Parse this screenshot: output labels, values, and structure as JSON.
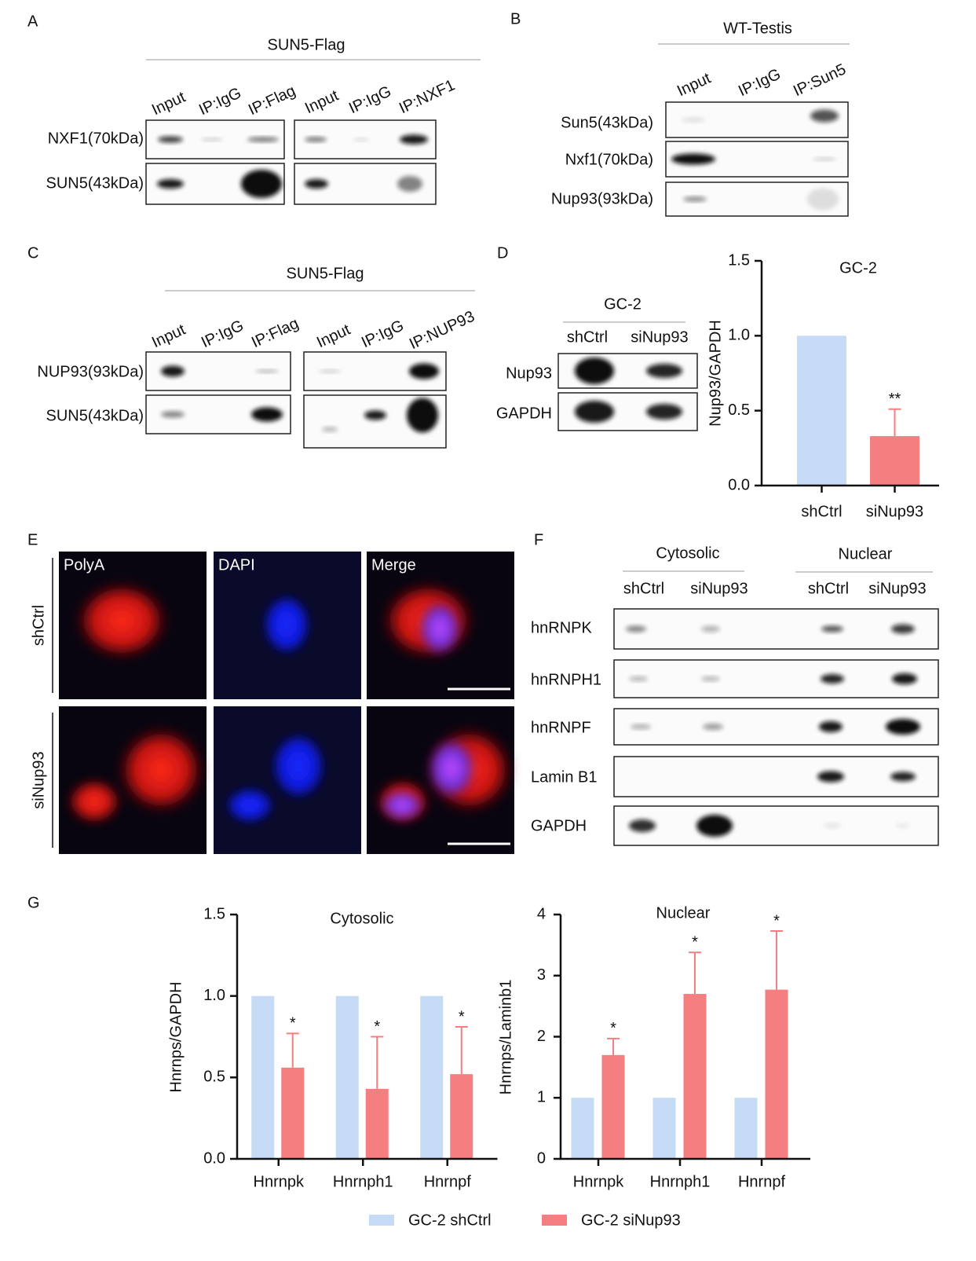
{
  "panel_letters": [
    "A",
    "B",
    "C",
    "D",
    "E",
    "F",
    "G"
  ],
  "panelA": {
    "title": "SUN5-Flag",
    "lanes": [
      "Input",
      "IP:IgG",
      "IP:Flag",
      "Input",
      "IP:IgG",
      "IP:NXF1"
    ],
    "rows": [
      "NXF1(70kDa)",
      "SUN5(43kDa)"
    ]
  },
  "panelB": {
    "title": "WT-Testis",
    "lanes": [
      "Input",
      "IP:IgG",
      "IP:Sun5"
    ],
    "rows": [
      "Sun5(43kDa)",
      "Nxf1(70kDa)",
      "Nup93(93kDa)"
    ]
  },
  "panelC": {
    "title": "SUN5-Flag",
    "lanes": [
      "Input",
      "IP:IgG",
      "IP:Flag",
      "Input",
      "IP:IgG",
      "IP:NUP93"
    ],
    "rows": [
      "NUP93(93kDa)",
      "SUN5(43kDa)"
    ]
  },
  "panelD": {
    "title": "GC-2",
    "lanes": [
      "shCtrl",
      "siNup93"
    ],
    "rows": [
      "Nup93",
      "GAPDH"
    ]
  },
  "panelE": {
    "columns": [
      "PolyA",
      "DAPI",
      "Merge"
    ],
    "rows": [
      "shCtrl",
      "siNup93"
    ]
  },
  "panelF": {
    "groups": [
      "Cytosolic",
      "Nuclear"
    ],
    "lanes": [
      "shCtrl",
      "siNup93",
      "shCtrl",
      "siNup93"
    ],
    "rows": [
      "hnRNPK",
      "hnRNPH1",
      "hnRNPF",
      "Lamin B1",
      "GAPDH"
    ]
  },
  "chart_data": [
    {
      "type": "bar",
      "title": "GC-2",
      "y_label": "Nup93/GAPDH",
      "categories": [
        "shCtrl",
        "siNup93"
      ],
      "values": [
        1.0,
        0.33
      ],
      "errors": [
        null,
        0.18
      ],
      "colors": [
        "#c6dbf5",
        "#f47e80"
      ],
      "value_annotations": [
        null,
        "**"
      ],
      "ylim": [
        0,
        1.5
      ],
      "yticks": [
        {
          "value": 0,
          "label": "0.0"
        },
        {
          "value": 0.5,
          "label": "0.5"
        },
        {
          "value": 1,
          "label": "1.0"
        },
        {
          "value": 1.5,
          "label": "1.5"
        }
      ]
    },
    {
      "type": "grouped_bar",
      "title": "Cytosolic",
      "y_label": "Hnrnps/GAPDH",
      "categories": [
        "Hnrnpk",
        "Hnrnph1",
        "Hnrnpf"
      ],
      "series": [
        {
          "name": "GC-2 shCtrl",
          "color": "#c6dbf5",
          "values": [
            1,
            1,
            1
          ]
        },
        {
          "name": "GC-2 siNup93",
          "color": "#f47e80",
          "values": [
            0.56,
            0.43,
            0.52
          ],
          "errors": [
            0.21,
            0.32,
            0.29
          ],
          "annotations": [
            "*",
            "*",
            "*"
          ]
        }
      ],
      "ylim": [
        0,
        1.5
      ],
      "yticks": [
        {
          "value": 0,
          "label": "0.0"
        },
        {
          "value": 0.5,
          "label": "0.5"
        },
        {
          "value": 1,
          "label": "1.0"
        },
        {
          "value": 1.5,
          "label": "1.5"
        }
      ]
    },
    {
      "type": "grouped_bar",
      "title": "Nuclear",
      "y_label": "Hnrnps/Laminb1",
      "categories": [
        "Hnrnpk",
        "Hnrnph1",
        "Hnrnpf"
      ],
      "series": [
        {
          "color": "#c6dbf5",
          "values": [
            1,
            1,
            1
          ]
        },
        {
          "color": "#f47e80",
          "values": [
            1.7,
            2.7,
            2.77
          ],
          "errors": [
            0.27,
            0.68,
            0.96
          ],
          "annotations": [
            "*",
            "*",
            "*"
          ]
        }
      ],
      "ylim": [
        0,
        4
      ],
      "yticks": [
        0,
        1,
        2,
        3,
        4
      ]
    }
  ]
}
